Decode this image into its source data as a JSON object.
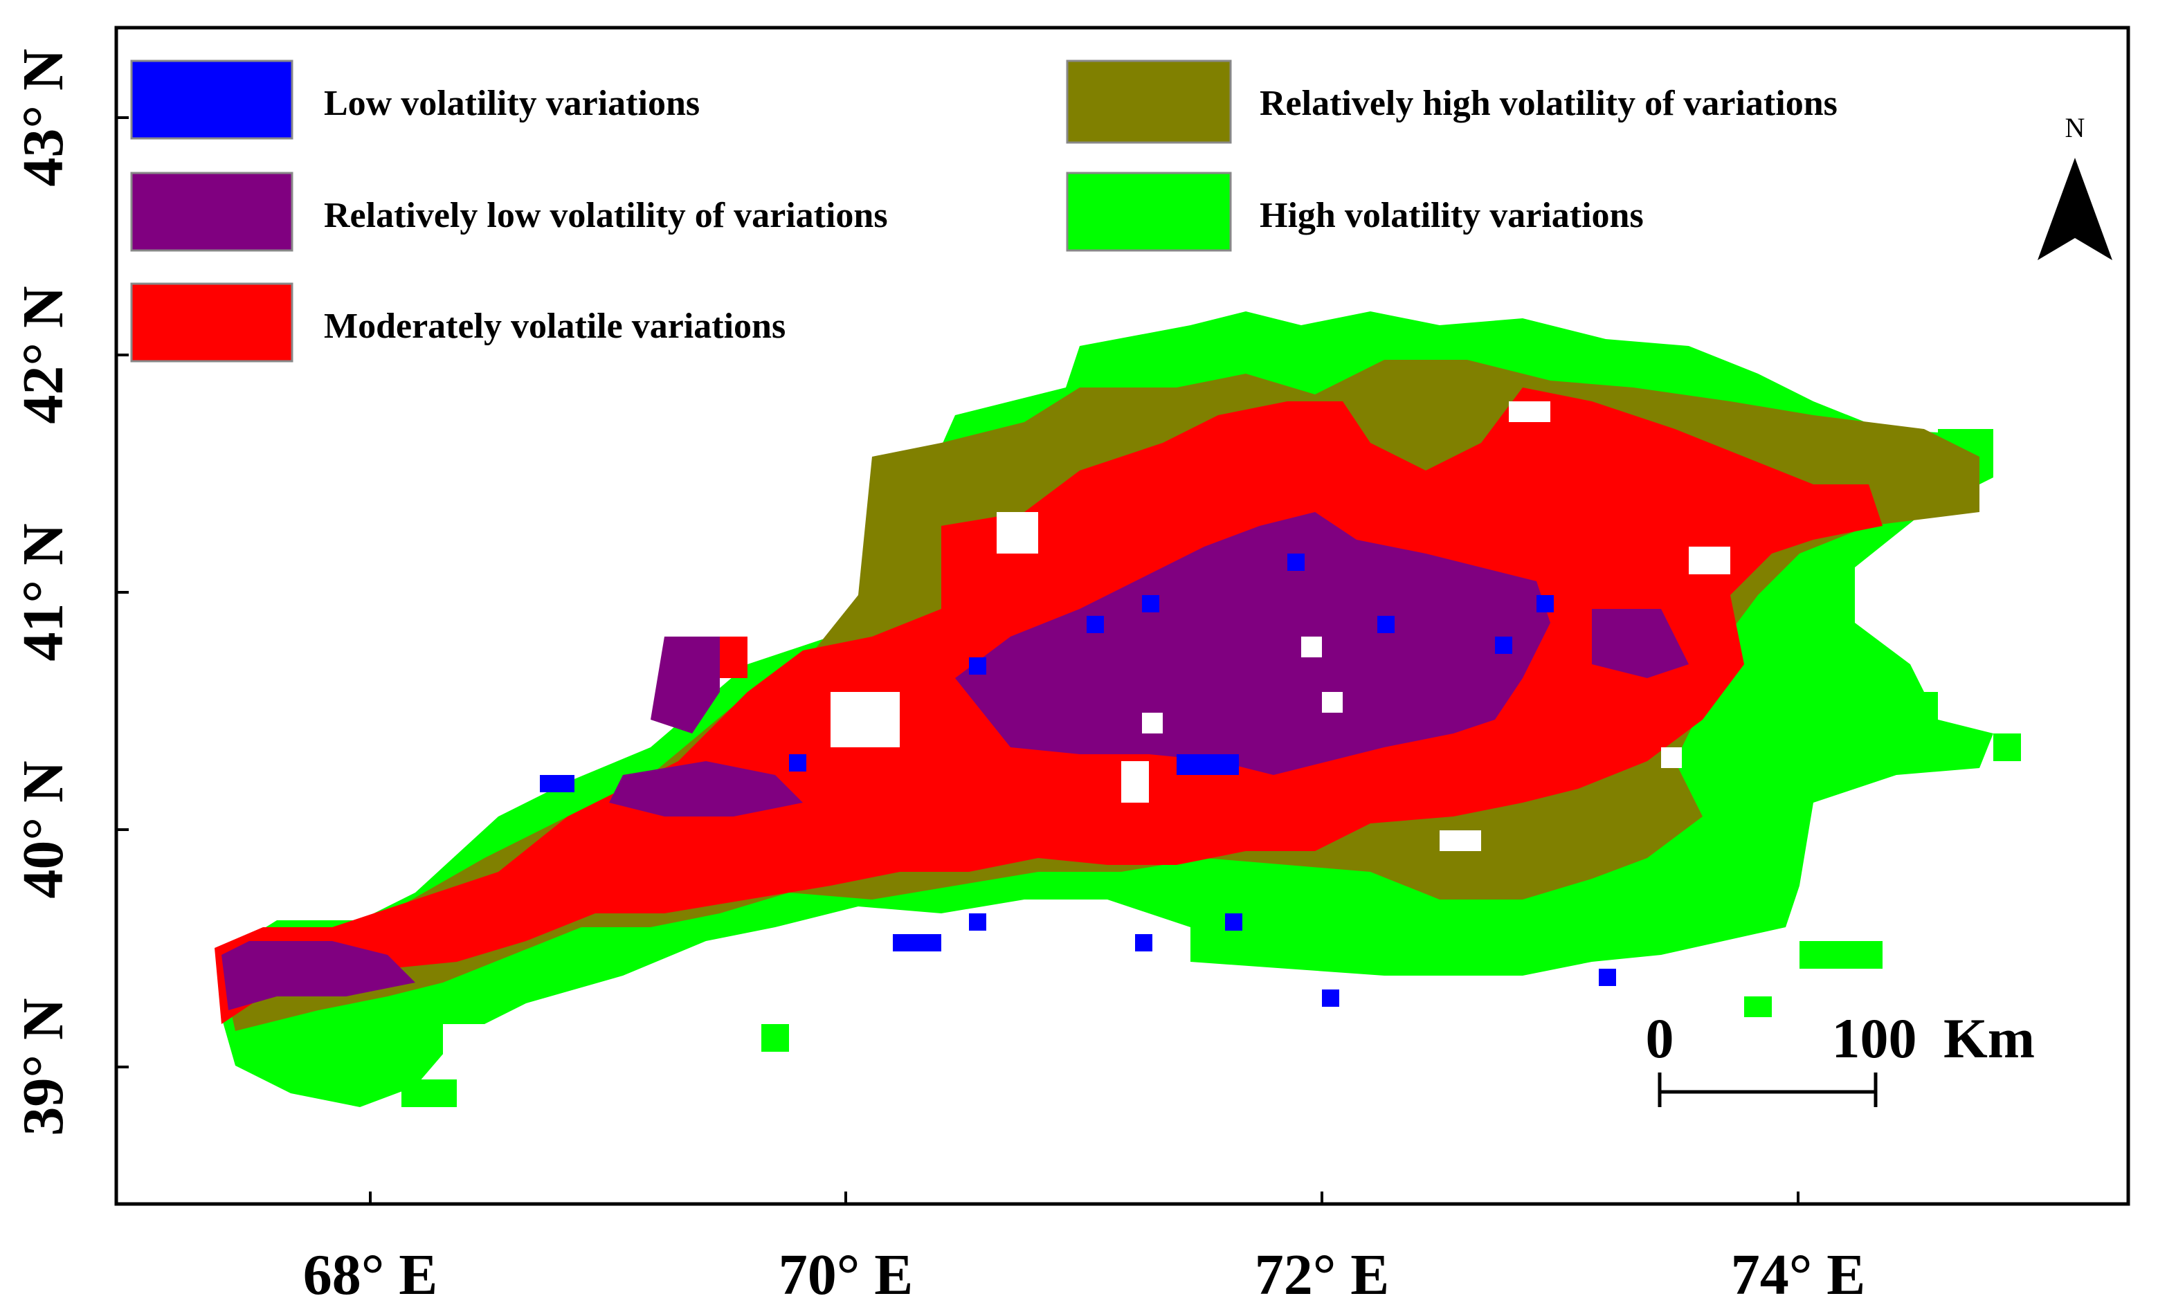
{
  "map": {
    "latitude_labels": [
      "43° N",
      "42° N",
      "41° N",
      "40° N",
      "39° N"
    ],
    "longitude_labels": [
      "68° E",
      "70° E",
      "72° E",
      "74° E"
    ],
    "north_label": "N",
    "scale": {
      "start": "0",
      "end": "100",
      "unit": "Km"
    }
  },
  "legend": {
    "items": [
      {
        "label": "Low volatility variations",
        "color": "#0000ff"
      },
      {
        "label": "Relatively low volatility of variations",
        "color": "#800080"
      },
      {
        "label": "Moderately volatile variations",
        "color": "#ff0000"
      },
      {
        "label": "Relatively high volatility of variations",
        "color": "#808000"
      },
      {
        "label": "High volatility variations",
        "color": "#00ff00"
      }
    ]
  }
}
